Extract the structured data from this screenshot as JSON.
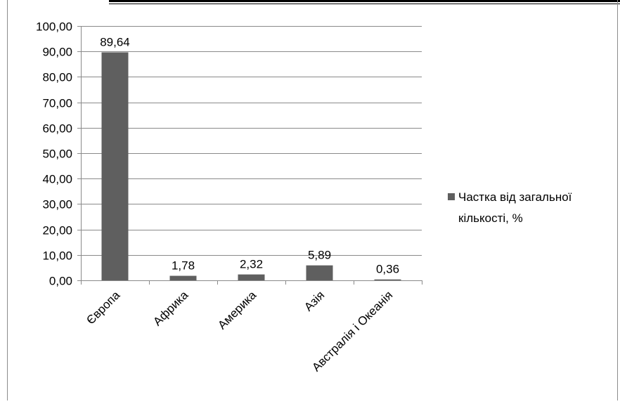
{
  "chart_data": {
    "type": "bar",
    "title": "",
    "xlabel": "",
    "ylabel": "",
    "categories": [
      "Європа",
      "Африка",
      "Америка",
      "Азія",
      "Австралія і Океанія"
    ],
    "series": [
      {
        "name": "Частка від загальної кількості, %",
        "values": [
          89.64,
          1.78,
          2.32,
          5.89,
          0.36
        ],
        "value_labels": [
          "89,64",
          "1,78",
          "2,32",
          "5,89",
          "0,36"
        ],
        "color": "#5f5f5f"
      }
    ],
    "ylim": [
      0,
      100
    ],
    "yticks": [
      0,
      10,
      20,
      30,
      40,
      50,
      60,
      70,
      80,
      90,
      100
    ],
    "ytick_labels": [
      "0,00",
      "10,00",
      "20,00",
      "30,00",
      "40,00",
      "50,00",
      "60,00",
      "70,00",
      "80,00",
      "90,00",
      "100,00"
    ],
    "grid": true,
    "legend_position": "right",
    "legend_lines": [
      "Частка від загальної",
      "кількості, %"
    ]
  }
}
